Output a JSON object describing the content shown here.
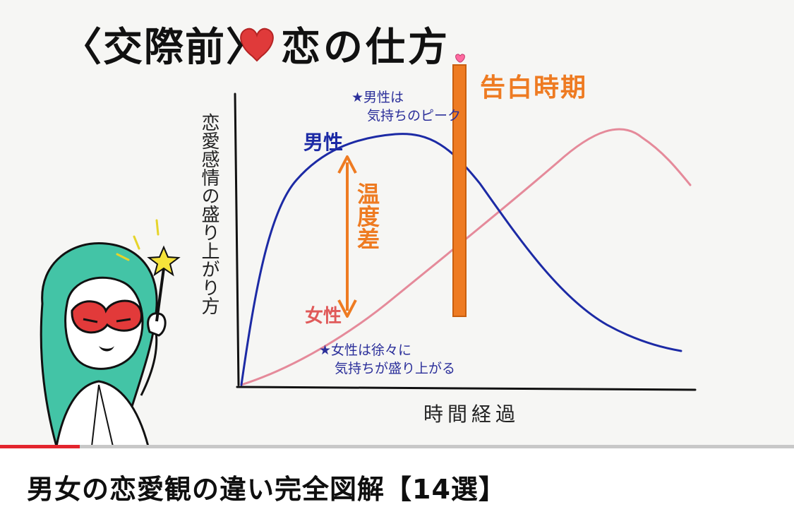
{
  "video": {
    "title": "男女の恋愛観の違い完全図解【14選】",
    "progress_fraction": 0.1,
    "progress_color": "#e3252d"
  },
  "slide": {
    "title_left": "〈交際前〉",
    "title_right": "恋の仕方",
    "heart_color": "#e03a3a",
    "y_axis_label": "恋愛感情の盛り上がり方",
    "x_axis_label": "時間経過",
    "kokuhaku_label": "告白時期",
    "ondo_label": "温度差",
    "male_label": "男性",
    "female_label": "女性",
    "note_male_line1": "★男性は",
    "note_male_line2": "気持ちのピーク",
    "note_female_line1": "★女性は徐々に",
    "note_female_line2": "気持ちが盛り上がる",
    "colors": {
      "male": "#1c2aa5",
      "female": "#e58a9a",
      "accent": "#ee7b22",
      "axis": "#111111"
    }
  }
}
